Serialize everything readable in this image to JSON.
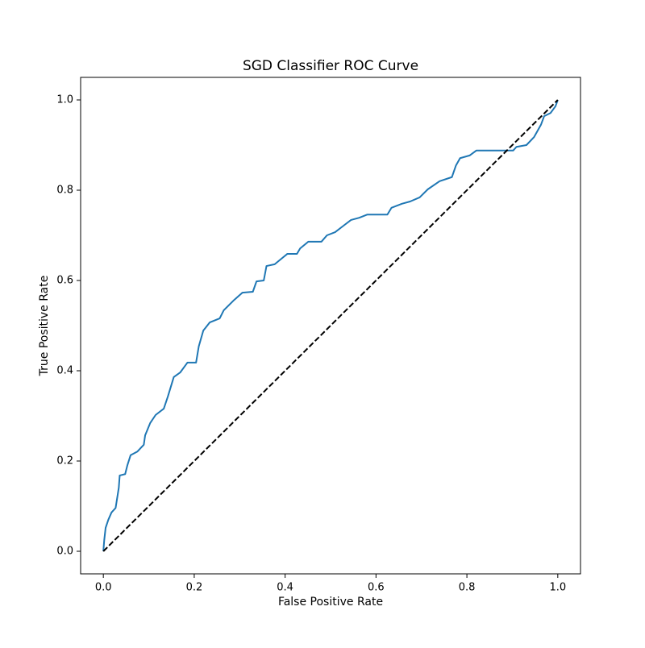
{
  "chart_data": {
    "type": "line",
    "title": "SGD Classifier ROC Curve",
    "x_label": "False Positive Rate",
    "y_label": "True Positive Rate",
    "xlim": [
      -0.05,
      1.05
    ],
    "ylim": [
      -0.05,
      1.05
    ],
    "xticks": [
      {
        "value": 0,
        "label": "0.0"
      },
      {
        "value": 0.2,
        "label": "0.2"
      },
      {
        "value": 0.4,
        "label": "0.4"
      },
      {
        "value": 0.6,
        "label": "0.6"
      },
      {
        "value": 0.8,
        "label": "0.8"
      },
      {
        "value": 1,
        "label": "1.0"
      }
    ],
    "yticks": [
      {
        "value": 0,
        "label": "0.0"
      },
      {
        "value": 0.2,
        "label": "0.2"
      },
      {
        "value": 0.4,
        "label": "0.4"
      },
      {
        "value": 0.6,
        "label": "0.6"
      },
      {
        "value": 0.8,
        "label": "0.8"
      },
      {
        "value": 1,
        "label": "1.0"
      }
    ],
    "grid": false,
    "series": [
      {
        "color": "#1f77b4",
        "dashed": false,
        "x": [
          0,
          0.002,
          0.005,
          0.011,
          0.018,
          0.027,
          0.034,
          0.036,
          0.048,
          0.053,
          0.06,
          0.075,
          0.089,
          0.092,
          0.103,
          0.115,
          0.133,
          0.142,
          0.155,
          0.169,
          0.185,
          0.204,
          0.21,
          0.22,
          0.234,
          0.256,
          0.265,
          0.288,
          0.306,
          0.329,
          0.337,
          0.353,
          0.359,
          0.377,
          0.394,
          0.405,
          0.426,
          0.433,
          0.451,
          0.48,
          0.492,
          0.51,
          0.528,
          0.545,
          0.563,
          0.581,
          0.625,
          0.634,
          0.657,
          0.675,
          0.696,
          0.714,
          0.74,
          0.767,
          0.776,
          0.785,
          0.806,
          0.821,
          0.902,
          0.909,
          0.931,
          0.948,
          0.963,
          0.97,
          0.984,
          0.995,
          1
        ],
        "values": [
          0,
          0.025,
          0.052,
          0.07,
          0.086,
          0.096,
          0.141,
          0.168,
          0.171,
          0.191,
          0.213,
          0.221,
          0.236,
          0.257,
          0.284,
          0.302,
          0.316,
          0.343,
          0.386,
          0.396,
          0.418,
          0.418,
          0.454,
          0.489,
          0.507,
          0.516,
          0.534,
          0.557,
          0.573,
          0.575,
          0.598,
          0.6,
          0.632,
          0.636,
          0.65,
          0.659,
          0.659,
          0.671,
          0.686,
          0.686,
          0.7,
          0.707,
          0.721,
          0.734,
          0.739,
          0.746,
          0.746,
          0.761,
          0.77,
          0.775,
          0.784,
          0.802,
          0.82,
          0.829,
          0.855,
          0.871,
          0.877,
          0.888,
          0.888,
          0.896,
          0.9,
          0.918,
          0.945,
          0.964,
          0.971,
          0.986,
          1
        ]
      },
      {
        "color": "#000000",
        "dashed": true,
        "x": [
          0,
          1
        ],
        "values": [
          0,
          1
        ]
      }
    ]
  }
}
